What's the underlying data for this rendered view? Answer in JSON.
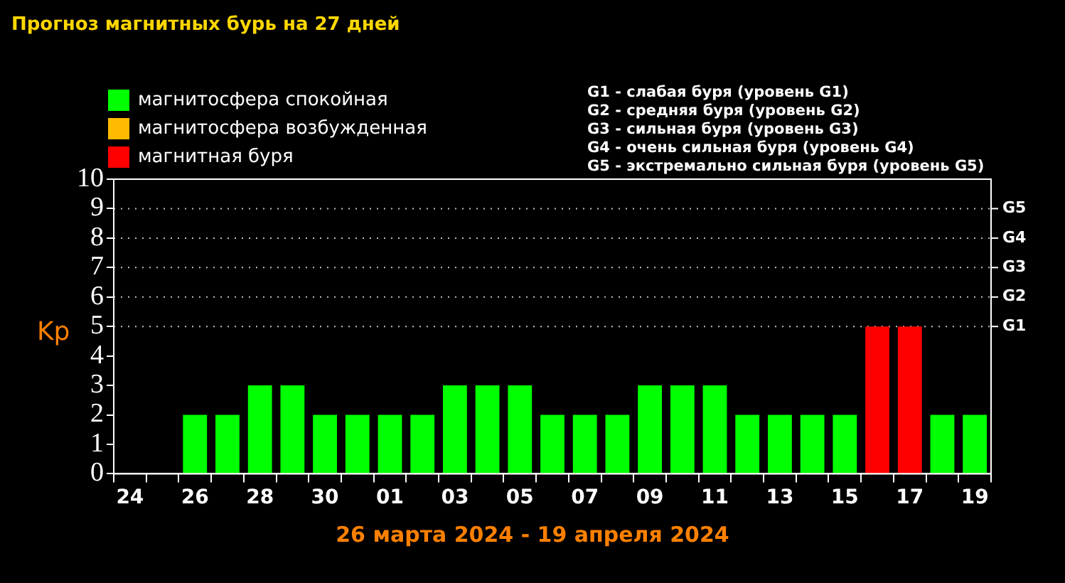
{
  "chart_data": {
    "type": "bar",
    "title": "Прогноз магнитных бурь на 27 дней",
    "xlabel": "26 марта 2024 - 19 апреля 2024",
    "ylabel": "Kp",
    "categories": [
      "24",
      null,
      "26",
      null,
      "28",
      null,
      "30",
      null,
      "01",
      null,
      "03",
      null,
      "05",
      null,
      "07",
      null,
      "09",
      null,
      "11",
      null,
      "13",
      null,
      "15",
      null,
      "17",
      null,
      "19"
    ],
    "stacked": true,
    "series": [
      {
        "name": "магнитосфера спокойная",
        "color": "#00ff00",
        "values": [
          null,
          null,
          2,
          2,
          3,
          3,
          2,
          2,
          2,
          2,
          3,
          3,
          3,
          2,
          2,
          2,
          3,
          3,
          3,
          2,
          2,
          2,
          2,
          null,
          null,
          2,
          2
        ]
      },
      {
        "name": "магнитосфера возбужденная",
        "color": "#ffbb00",
        "values": [
          null,
          null,
          null,
          null,
          null,
          null,
          null,
          null,
          null,
          null,
          null,
          null,
          null,
          null,
          null,
          null,
          null,
          null,
          null,
          null,
          null,
          null,
          null,
          null,
          null,
          null,
          null
        ]
      },
      {
        "name": "магнитная буря",
        "color": "#ff0000",
        "values": [
          null,
          null,
          null,
          null,
          null,
          null,
          null,
          null,
          null,
          null,
          null,
          null,
          null,
          null,
          null,
          null,
          null,
          null,
          null,
          null,
          null,
          null,
          null,
          5,
          5,
          null,
          null
        ]
      }
    ],
    "ylim": [
      0,
      10
    ],
    "yticks": [
      0,
      1,
      2,
      3,
      4,
      5,
      6,
      7,
      8,
      9,
      10
    ],
    "ref_lines": [
      {
        "axis": "y",
        "value": 5,
        "label": "G1",
        "line_style": "dotted",
        "color": "#c0c0c0"
      },
      {
        "axis": "y",
        "value": 6,
        "label": "G2",
        "line_style": "dotted",
        "color": "#c0c0c0"
      },
      {
        "axis": "y",
        "value": 7,
        "label": "G3",
        "line_style": "dotted",
        "color": "#c0c0c0"
      },
      {
        "axis": "y",
        "value": 8,
        "label": "G4",
        "line_style": "dotted",
        "color": "#c0c0c0"
      },
      {
        "axis": "y",
        "value": 9,
        "label": "G5",
        "line_style": "dotted",
        "color": "#c0c0c0"
      }
    ],
    "annotations": [
      "G1 - слабая буря (уровень G1)",
      "G2 - средняя буря (уровень G2)",
      "G3 - сильная буря (уровень G3)",
      "G4 - очень сильная буря (уровень G4)",
      "G5 - экстремально сильная буря (уровень G5)"
    ],
    "legend": "top left",
    "grid": false
  }
}
